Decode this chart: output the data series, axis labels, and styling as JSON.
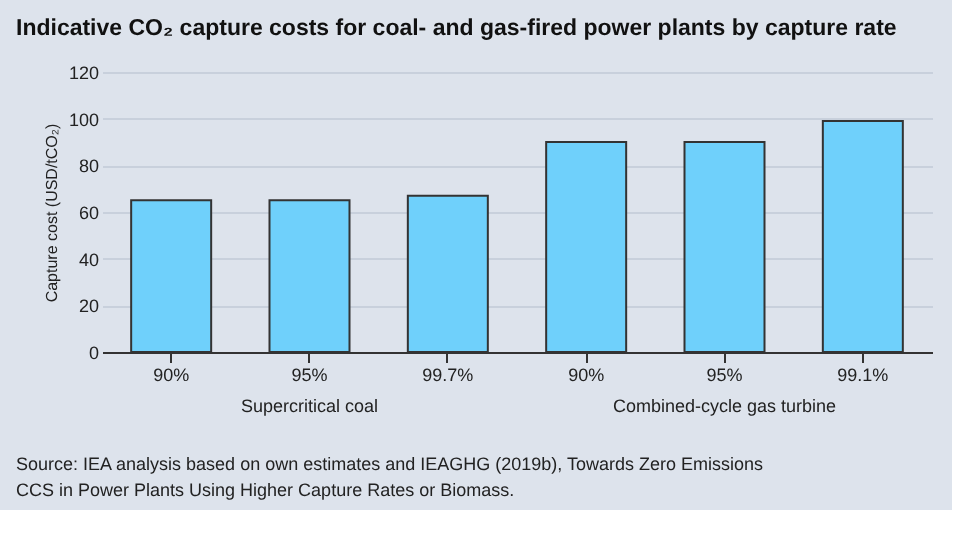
{
  "chart_data": {
    "type": "bar",
    "title": "Indicative CO₂ capture costs for coal- and gas-fired power plants by capture rate",
    "ylabel": "Capture cost (USD/tCO₂)",
    "categories": [
      "90%",
      "95%",
      "99.7%",
      "90%",
      "95%",
      "99.1%"
    ],
    "values": [
      65,
      65,
      67,
      90,
      90,
      99
    ],
    "color": "#6fd0fb",
    "ylim": [
      0,
      120
    ],
    "yticks": [
      0,
      20,
      40,
      60,
      80,
      100,
      120
    ],
    "grid": "y",
    "annotations": [
      "Supercritical coal",
      "Combined-cycle gas turbine",
      "Source: IEA analysis based on own estimates and IEAGHG (2019b), Towards Zero Emissions CCS in Power Plants Using Higher Capture Rates or Biomass."
    ]
  }
}
